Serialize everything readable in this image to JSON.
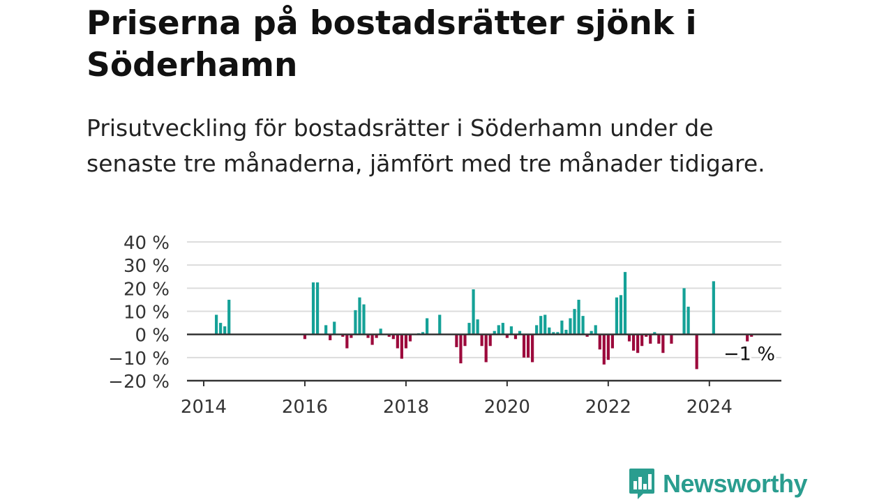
{
  "title": "Priserna på bostadsrätter sjönk i Söderhamn",
  "subtitle": "Prisutveckling för bostadsrätter i Söderhamn under de senaste tre månaderna, jämfört med tre månader tidigare.",
  "brand": "Newsworthy",
  "colors": {
    "positive": "#14a197",
    "negative": "#9c0a3c",
    "grid": "#dcdcdc",
    "axis": "#333333",
    "brand": "#2a9d8f"
  },
  "chart_data": {
    "type": "bar",
    "x_unit": "month (YYYY-MM)",
    "y_unit": "percent",
    "ylim": [
      -20,
      40
    ],
    "yticks": [
      40,
      30,
      20,
      10,
      0,
      -10,
      -20
    ],
    "ytick_labels": [
      "40 %",
      "30 %",
      "20 %",
      "10 %",
      "0 %",
      "−10 %",
      "−20 %"
    ],
    "xticks": [
      {
        "date": "2014-01",
        "label": "2014"
      },
      {
        "date": "2016-01",
        "label": "2016"
      },
      {
        "date": "2018-01",
        "label": "2018"
      },
      {
        "date": "2020-01",
        "label": "2020"
      },
      {
        "date": "2022-01",
        "label": "2022"
      },
      {
        "date": "2024-01",
        "label": "2024"
      }
    ],
    "grid": true,
    "annotation": {
      "date": "2024-11",
      "label": "−1 %"
    },
    "series": [
      {
        "points": [
          {
            "x": "2014-04",
            "y": 8.5
          },
          {
            "x": "2014-05",
            "y": 5
          },
          {
            "x": "2014-06",
            "y": 3.5
          },
          {
            "x": "2014-07",
            "y": 15
          },
          {
            "x": "2016-01",
            "y": -2
          },
          {
            "x": "2016-03",
            "y": 22.5
          },
          {
            "x": "2016-04",
            "y": 22.5
          },
          {
            "x": "2016-06",
            "y": 4
          },
          {
            "x": "2016-07",
            "y": -2.5
          },
          {
            "x": "2016-08",
            "y": 5.5
          },
          {
            "x": "2016-10",
            "y": -1
          },
          {
            "x": "2016-11",
            "y": -6
          },
          {
            "x": "2016-12",
            "y": -1.5
          },
          {
            "x": "2017-01",
            "y": 10.5
          },
          {
            "x": "2017-02",
            "y": 16
          },
          {
            "x": "2017-03",
            "y": 13
          },
          {
            "x": "2017-04",
            "y": -1.5
          },
          {
            "x": "2017-05",
            "y": -4.5
          },
          {
            "x": "2017-06",
            "y": -1.5
          },
          {
            "x": "2017-07",
            "y": 2.5
          },
          {
            "x": "2017-09",
            "y": -1
          },
          {
            "x": "2017-10",
            "y": -2
          },
          {
            "x": "2017-11",
            "y": -6
          },
          {
            "x": "2017-12",
            "y": -10.5
          },
          {
            "x": "2018-01",
            "y": -6
          },
          {
            "x": "2018-02",
            "y": -3
          },
          {
            "x": "2018-04",
            "y": 0.5
          },
          {
            "x": "2018-05",
            "y": 1
          },
          {
            "x": "2018-06",
            "y": 7
          },
          {
            "x": "2018-09",
            "y": 8.5
          },
          {
            "x": "2019-01",
            "y": -5.5
          },
          {
            "x": "2019-02",
            "y": -12.5
          },
          {
            "x": "2019-03",
            "y": -5
          },
          {
            "x": "2019-04",
            "y": 5
          },
          {
            "x": "2019-05",
            "y": 19.5
          },
          {
            "x": "2019-06",
            "y": 6.5
          },
          {
            "x": "2019-07",
            "y": -5
          },
          {
            "x": "2019-08",
            "y": -12
          },
          {
            "x": "2019-09",
            "y": -5
          },
          {
            "x": "2019-10",
            "y": 1.5
          },
          {
            "x": "2019-11",
            "y": 4
          },
          {
            "x": "2019-12",
            "y": 5
          },
          {
            "x": "2020-01",
            "y": -1.5
          },
          {
            "x": "2020-02",
            "y": 3.5
          },
          {
            "x": "2020-03",
            "y": -2
          },
          {
            "x": "2020-04",
            "y": 1.5
          },
          {
            "x": "2020-05",
            "y": -10
          },
          {
            "x": "2020-06",
            "y": -10
          },
          {
            "x": "2020-07",
            "y": -12
          },
          {
            "x": "2020-08",
            "y": 4
          },
          {
            "x": "2020-09",
            "y": 8
          },
          {
            "x": "2020-10",
            "y": 8.5
          },
          {
            "x": "2020-11",
            "y": 3
          },
          {
            "x": "2020-12",
            "y": 1
          },
          {
            "x": "2021-01",
            "y": 1
          },
          {
            "x": "2021-02",
            "y": 6
          },
          {
            "x": "2021-03",
            "y": 2
          },
          {
            "x": "2021-04",
            "y": 7
          },
          {
            "x": "2021-05",
            "y": 11
          },
          {
            "x": "2021-06",
            "y": 15
          },
          {
            "x": "2021-07",
            "y": 8
          },
          {
            "x": "2021-08",
            "y": -1
          },
          {
            "x": "2021-09",
            "y": 1.5
          },
          {
            "x": "2021-10",
            "y": 4
          },
          {
            "x": "2021-11",
            "y": -6.5
          },
          {
            "x": "2021-12",
            "y": -13
          },
          {
            "x": "2022-01",
            "y": -11
          },
          {
            "x": "2022-02",
            "y": -6
          },
          {
            "x": "2022-03",
            "y": 16
          },
          {
            "x": "2022-04",
            "y": 17
          },
          {
            "x": "2022-05",
            "y": 27
          },
          {
            "x": "2022-06",
            "y": -3
          },
          {
            "x": "2022-07",
            "y": -7
          },
          {
            "x": "2022-08",
            "y": -8
          },
          {
            "x": "2022-09",
            "y": -5
          },
          {
            "x": "2022-10",
            "y": -1
          },
          {
            "x": "2022-11",
            "y": -4
          },
          {
            "x": "2022-12",
            "y": 1
          },
          {
            "x": "2023-01",
            "y": -4
          },
          {
            "x": "2023-02",
            "y": -8
          },
          {
            "x": "2023-04",
            "y": -4
          },
          {
            "x": "2023-07",
            "y": 20
          },
          {
            "x": "2023-08",
            "y": 12
          },
          {
            "x": "2023-10",
            "y": -15
          },
          {
            "x": "2024-02",
            "y": 23
          },
          {
            "x": "2024-10",
            "y": -3
          },
          {
            "x": "2024-11",
            "y": -1
          }
        ]
      }
    ]
  }
}
